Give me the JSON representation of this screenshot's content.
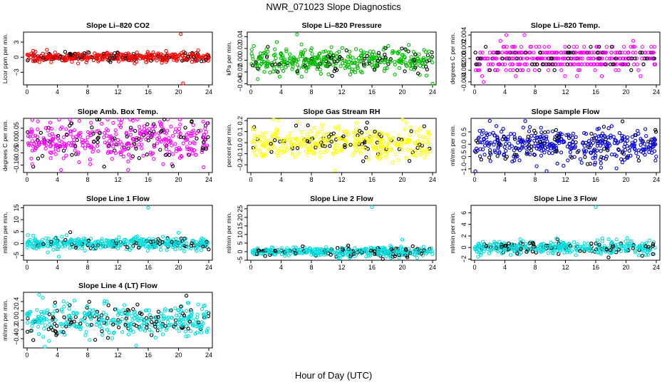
{
  "figure": {
    "title": "NWR_071023  Slope Diagnostics",
    "xlabel": "Hour of Day (UTC)"
  },
  "chart_data": [
    {
      "type": "scatter",
      "title": "Slope Li–820 CO2",
      "ylabel": "Licor ppm per min.",
      "color": "#ff0000",
      "xlim": [
        0,
        24
      ],
      "xticks": [
        0,
        4,
        8,
        12,
        16,
        20,
        24
      ],
      "ylim": [
        -5.5,
        5.0
      ],
      "yticks": [
        -3,
        0,
        3
      ],
      "ytick_labels": [
        "−3",
        "0",
        "3"
      ],
      "spread": 0.45,
      "outliers": [
        {
          "x": 20.3,
          "y": 4.6
        },
        {
          "x": 20.6,
          "y": -5.2
        }
      ],
      "n": 420
    },
    {
      "type": "scatter",
      "title": "Slope Li–820 Pressure",
      "ylabel": "kPa per min.",
      "color": "#00bb00",
      "xlim": [
        0,
        24
      ],
      "xticks": [
        0,
        4,
        8,
        12,
        16,
        20,
        24
      ],
      "ylim": [
        -0.042,
        0.048
      ],
      "yticks": [
        -0.04,
        -0.02,
        0.0,
        0.02,
        0.04
      ],
      "ytick_labels": [
        "−0.04",
        "−0.02",
        "0.00",
        "0.02",
        "0.04"
      ],
      "spread": 0.011,
      "outliers": [
        {
          "x": 6.1,
          "y": 0.044
        },
        {
          "x": 24.0,
          "y": -0.04
        },
        {
          "x": 3.8,
          "y": -0.028
        }
      ],
      "n": 420
    },
    {
      "type": "scatter",
      "title": "Slope Li–820 Temp.",
      "ylabel": "degrees C per min.",
      "color": "#ff00ff",
      "xlim": [
        0,
        24
      ],
      "xticks": [
        0,
        4,
        8,
        12,
        16,
        20,
        24
      ],
      "ylim": [
        -0.0045,
        0.0045
      ],
      "yticks": [
        -0.004,
        -0.002,
        0.0,
        0.002,
        0.004
      ],
      "ytick_labels": [
        "−0.004",
        "−0.002",
        "0.000",
        "0.002",
        "0.004"
      ],
      "spread": 0.0011,
      "quantize": 0.001,
      "outliers": [
        {
          "x": 1.2,
          "y": -0.004
        },
        {
          "x": 4.2,
          "y": 0.004
        },
        {
          "x": 6.6,
          "y": 0.004
        },
        {
          "x": 1.0,
          "y": -0.003
        }
      ],
      "n": 420
    },
    {
      "type": "scatter",
      "title": "Slope Amb. Box Temp.",
      "ylabel": "degrees C per min.",
      "color": "#ff00ff",
      "xlim": [
        0,
        24
      ],
      "xticks": [
        0,
        4,
        8,
        12,
        16,
        20,
        24
      ],
      "ylim": [
        -0.13,
        0.09
      ],
      "yticks": [
        -0.1,
        -0.05,
        0.0,
        0.05
      ],
      "ytick_labels": [
        "−0.10",
        "−0.05",
        "0.00",
        "0.05"
      ],
      "spread": 0.04,
      "outliers": [
        {
          "x": 4.5,
          "y": -0.12
        },
        {
          "x": 6.9,
          "y": 0.08
        }
      ],
      "n": 420
    },
    {
      "type": "scatter",
      "title": "Slope Gas Stream RH",
      "ylabel": "percent per min.",
      "color": "#ffff00",
      "xlim": [
        0,
        24
      ],
      "xticks": [
        0,
        4,
        8,
        12,
        16,
        20,
        24
      ],
      "ylim": [
        -0.27,
        0.22
      ],
      "yticks": [
        -0.2,
        -0.1,
        0.0,
        0.1,
        0.2
      ],
      "ytick_labels": [
        "−0.2",
        "−0.1",
        "0.0",
        "0.1",
        "0.2"
      ],
      "spread": 0.07,
      "outliers": [
        {
          "x": 3.0,
          "y": 0.21
        },
        {
          "x": 11.1,
          "y": -0.25
        }
      ],
      "n": 420
    },
    {
      "type": "scatter",
      "title": "Slope Sample Flow",
      "ylabel": "ml/min per min.",
      "color": "#0000dd",
      "xlim": [
        0,
        24
      ],
      "xticks": [
        0,
        4,
        8,
        12,
        16,
        20,
        24
      ],
      "ylim": [
        -1.15,
        1.05
      ],
      "yticks": [
        -1.0,
        -0.5,
        0.0,
        0.5
      ],
      "ytick_labels": [
        "−1.0",
        "−0.5",
        "0.0",
        "0.5"
      ],
      "spread": 0.35,
      "outliers": [
        {
          "x": 0.1,
          "y": -1.1
        },
        {
          "x": 2.0,
          "y": 0.95
        },
        {
          "x": 16.7,
          "y": -0.95
        }
      ],
      "n": 420
    },
    {
      "type": "scatter",
      "title": "Slope Line 1 Flow",
      "ylabel": "ml/min per min.",
      "color": "#00dddd",
      "xlim": [
        0,
        24
      ],
      "xticks": [
        0,
        4,
        8,
        12,
        16,
        20,
        24
      ],
      "ylim": [
        -7,
        16
      ],
      "yticks": [
        -5,
        0,
        5,
        10,
        15
      ],
      "ytick_labels": [
        "−5",
        "0",
        "5",
        "10",
        "15"
      ],
      "spread": 1.3,
      "outliers": [
        {
          "x": 16.0,
          "y": 15
        },
        {
          "x": 20.0,
          "y": 4.5
        },
        {
          "x": 4.2,
          "y": -5.5
        }
      ],
      "n": 420
    },
    {
      "type": "scatter",
      "title": "Slope Line 2 Flow",
      "ylabel": "ml/min per min.",
      "color": "#00dddd",
      "xlim": [
        0,
        24
      ],
      "xticks": [
        0,
        4,
        8,
        12,
        16,
        20,
        24
      ],
      "ylim": [
        -5,
        27
      ],
      "yticks": [
        -5,
        0,
        5,
        10,
        15,
        20,
        25
      ],
      "ytick_labels": [
        "−5",
        "0",
        "5",
        "10",
        "15",
        "20",
        "25"
      ],
      "spread": 1.3,
      "outliers": [
        {
          "x": 16.0,
          "y": 26
        },
        {
          "x": 20.0,
          "y": 7
        }
      ],
      "n": 420
    },
    {
      "type": "scatter",
      "title": "Slope Line 3 Flow",
      "ylabel": "ml/min per min.",
      "color": "#00dddd",
      "xlim": [
        0,
        24
      ],
      "xticks": [
        0,
        4,
        8,
        12,
        16,
        20,
        24
      ],
      "ylim": [
        -2.2,
        7.3
      ],
      "yticks": [
        -2,
        0,
        2,
        4,
        6
      ],
      "ytick_labels": [
        "−2",
        "0",
        "2",
        "4",
        "6"
      ],
      "spread": 0.55,
      "outliers": [
        {
          "x": 16.0,
          "y": 7.0
        }
      ],
      "n": 420
    },
    {
      "type": "scatter",
      "title": "Slope Line 4 (LT) Flow",
      "ylabel": "ml/min per min.",
      "color": "#00dddd",
      "xlim": [
        0,
        24
      ],
      "xticks": [
        0,
        4,
        8,
        12,
        16,
        20,
        24
      ],
      "ylim": [
        -0.6,
        0.6
      ],
      "yticks": [
        -0.4,
        -0.2,
        0.0,
        0.2,
        0.4
      ],
      "ytick_labels": [
        "−0.4",
        "−0.2",
        "0.0",
        "0.2",
        "0.4"
      ],
      "spread": 0.18,
      "outliers": [
        {
          "x": 1.6,
          "y": 0.55
        },
        {
          "x": 14.4,
          "y": -0.55
        }
      ],
      "n": 420
    }
  ]
}
